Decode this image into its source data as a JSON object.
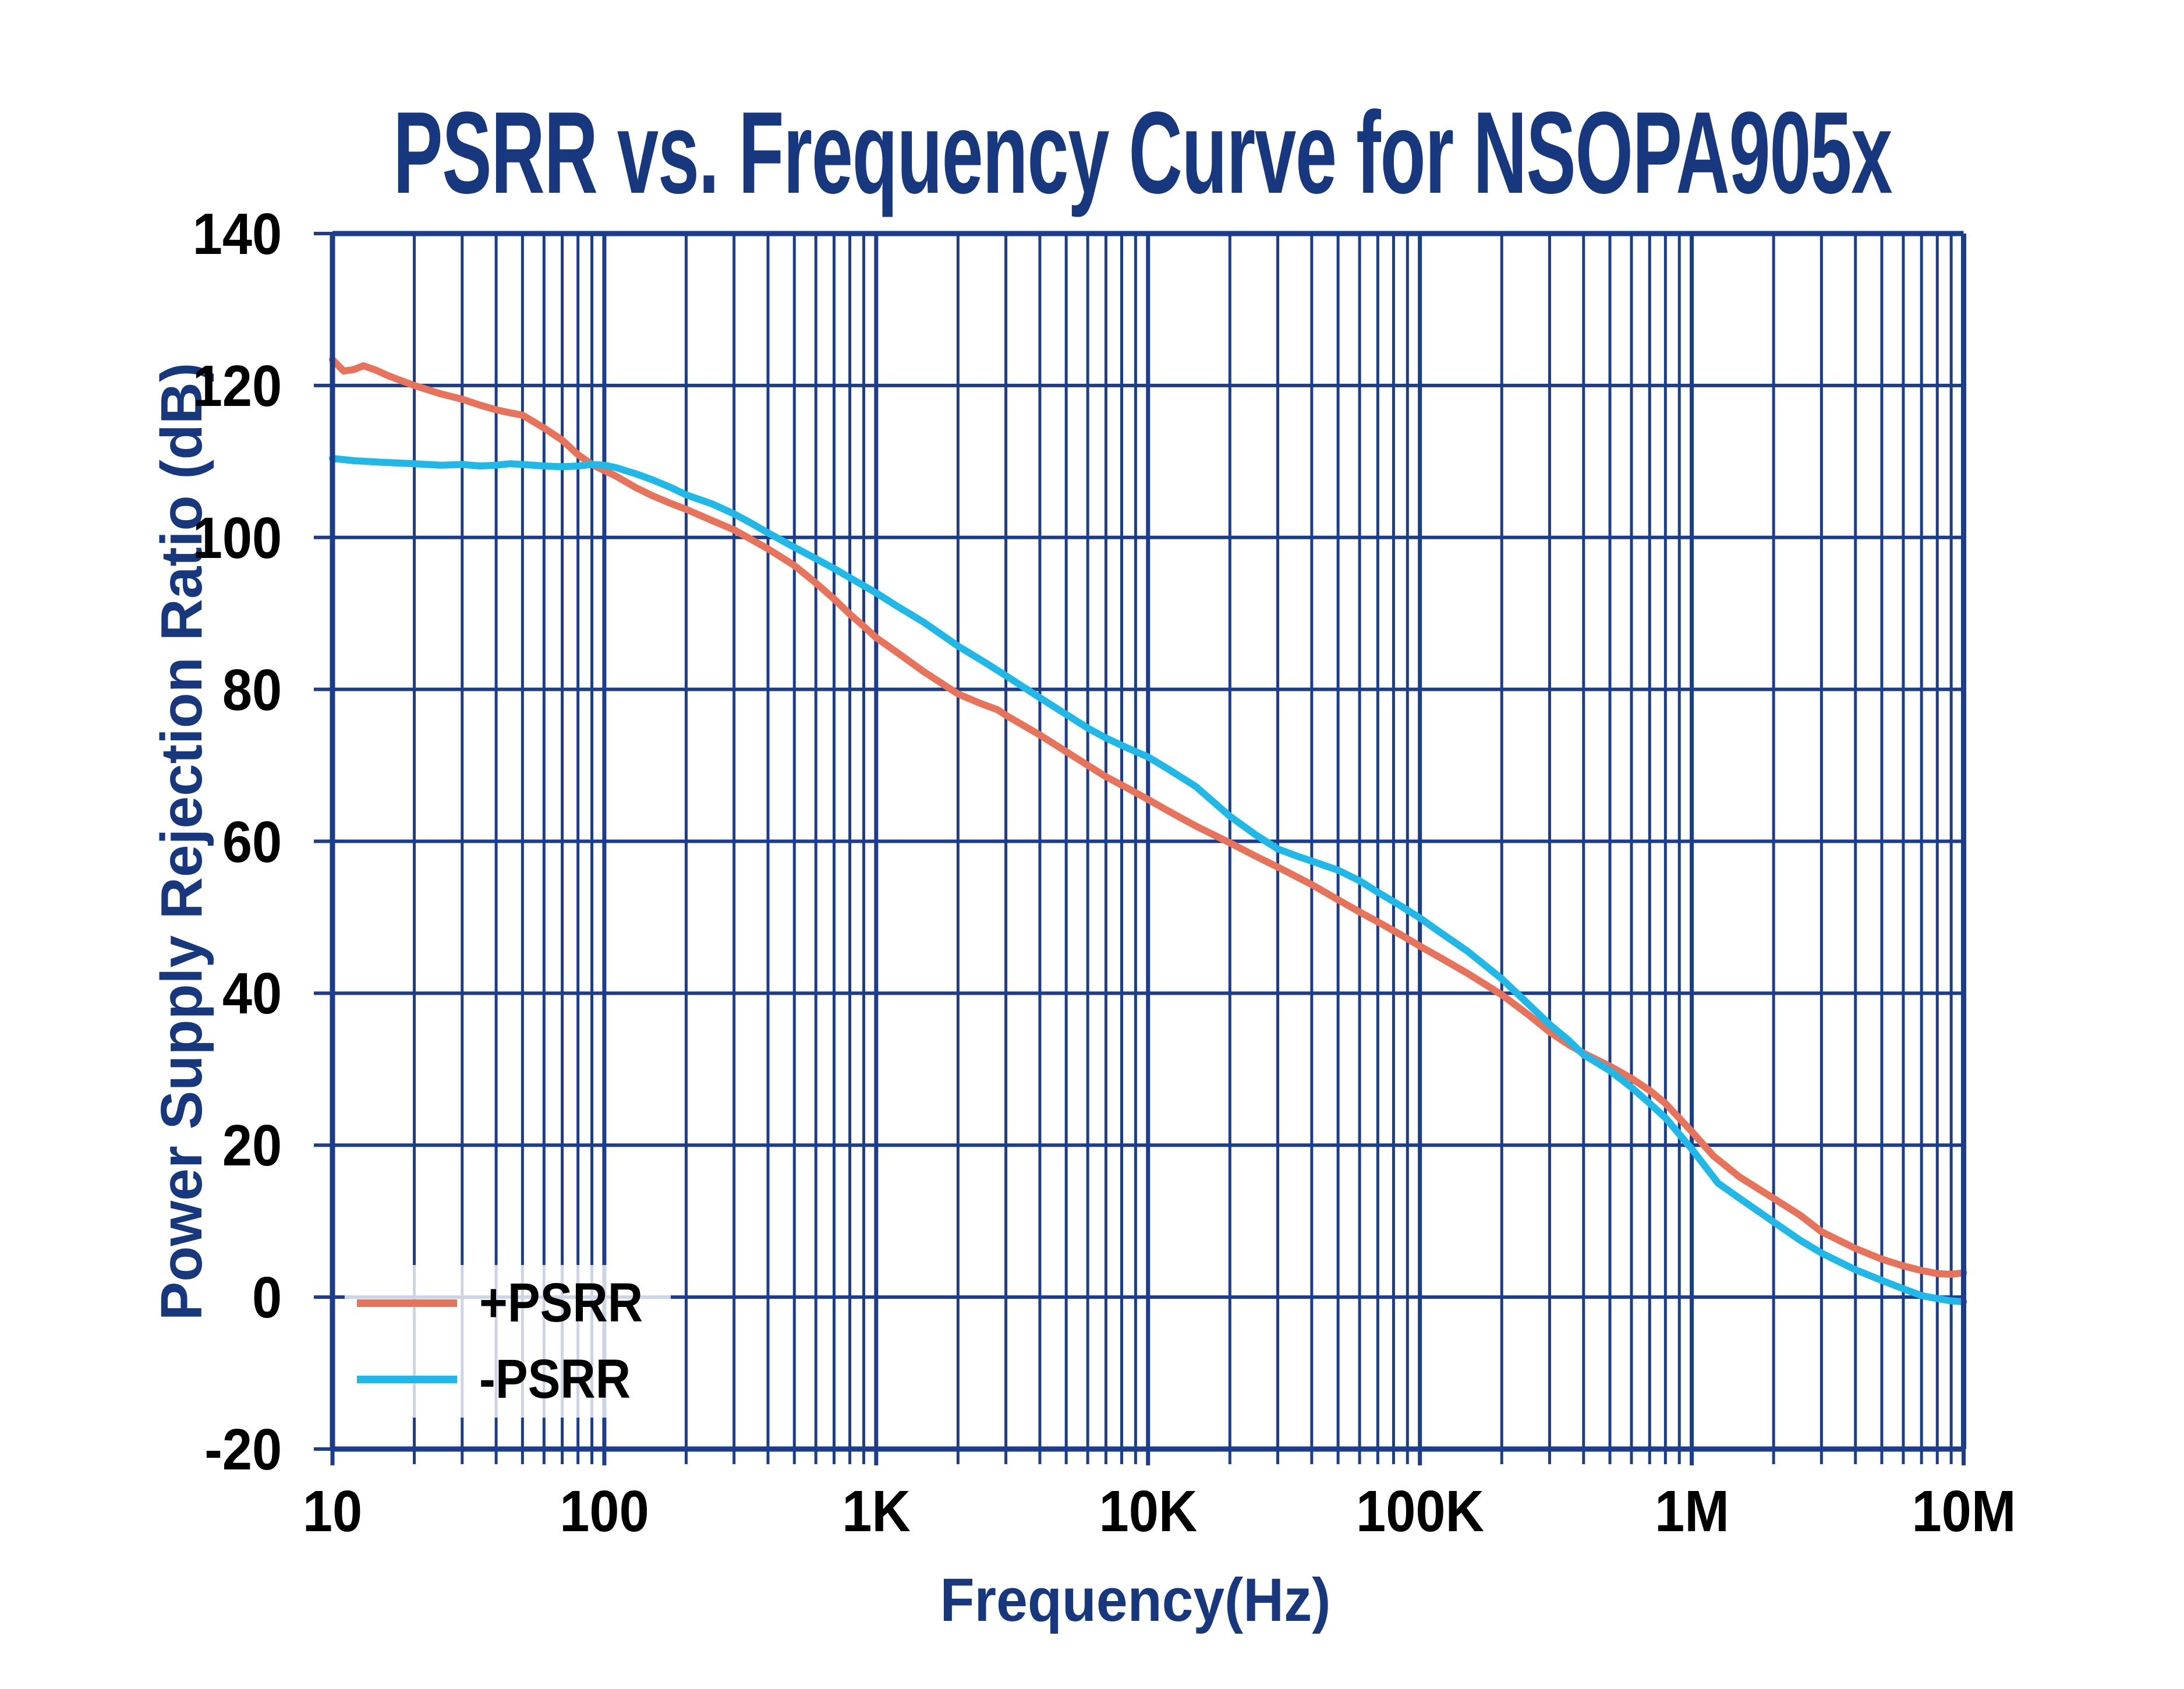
{
  "title": "PSRR vs. Frequency Curve for NSOPA905x",
  "colors": {
    "title_text": "#17377F",
    "axis_label_text": "#17377F",
    "tick_label_text": "#000000",
    "grid_line": "#1C3C8C",
    "plus_psrr": "#E8735A",
    "minus_psrr": "#1FB8E8",
    "legend_background": "rgba(255,255,255,0.78)"
  },
  "legend": {
    "entries": [
      {
        "label": "+PSRR",
        "series": "plus_psrr"
      },
      {
        "label": "-PSRR",
        "series": "minus_psrr"
      }
    ]
  },
  "chart_data": {
    "type": "line",
    "title": "PSRR vs. Frequency Curve for NSOPA905x",
    "xlabel": "Frequency(Hz)",
    "ylabel": "Power Supply Rejection Ratio (dB)",
    "x_scale": "log",
    "xlim": [
      10,
      10000000
    ],
    "ylim": [
      -20,
      140
    ],
    "grid": "both-major-and-minor",
    "legend_position": "lower-left",
    "x_tick_labels": [
      "10",
      "100",
      "1K",
      "10K",
      "100K",
      "1M",
      "10M"
    ],
    "x_tick_values": [
      10,
      100,
      1000,
      10000,
      100000,
      1000000,
      10000000
    ],
    "y_tick_labels": [
      "140",
      "120",
      "100",
      "80",
      "60",
      "40",
      "20",
      "0",
      "-20"
    ],
    "y_tick_values": [
      140,
      120,
      100,
      80,
      60,
      40,
      20,
      0,
      -20
    ],
    "series": [
      {
        "name": "+PSRR",
        "color": "#E8735A",
        "x": [
          10,
          11,
          12,
          13,
          14.5,
          16,
          18,
          20,
          25,
          30,
          35,
          40,
          45,
          50,
          60,
          70,
          80,
          90,
          100,
          110,
          130,
          150,
          175,
          200,
          250,
          300,
          400,
          500,
          600,
          700,
          800,
          900,
          1000,
          1200,
          1500,
          2000,
          2400,
          2800,
          3000,
          4000,
          5000,
          6000,
          7000,
          8500,
          10000,
          12000,
          15000,
          20000,
          25000,
          30000,
          40000,
          50000,
          60000,
          70000,
          85000,
          100000,
          120000,
          150000,
          200000,
          250000,
          300000,
          350000,
          400000,
          500000,
          600000,
          700000,
          800000,
          1000000,
          1200000,
          1500000,
          2000000,
          2500000,
          3000000,
          4000000,
          5000000,
          6000000,
          7000000,
          8000000,
          9000000,
          10000000
        ],
        "y": [
          123.4,
          121.9,
          122.1,
          122.6,
          122.0,
          121.3,
          120.6,
          120.0,
          118.9,
          118.2,
          117.4,
          116.8,
          116.4,
          116.1,
          114.4,
          112.8,
          110.9,
          109.6,
          108.8,
          108.1,
          106.6,
          105.5,
          104.5,
          103.7,
          102.2,
          101.0,
          98.5,
          96.3,
          94.0,
          91.9,
          89.9,
          88.3,
          86.8,
          84.8,
          82.3,
          79.4,
          78.2,
          77.3,
          76.6,
          74.0,
          71.8,
          70.0,
          68.5,
          66.9,
          65.5,
          63.9,
          62.0,
          59.8,
          58.0,
          56.6,
          54.3,
          52.3,
          50.7,
          49.4,
          47.7,
          46.2,
          44.6,
          42.6,
          39.8,
          37.2,
          34.9,
          33.3,
          32.1,
          30.4,
          28.8,
          27.2,
          25.5,
          21.8,
          18.6,
          15.8,
          13.0,
          10.8,
          8.6,
          6.4,
          5.0,
          4.1,
          3.5,
          3.1,
          3.0,
          3.2
        ]
      },
      {
        "name": "-PSRR",
        "color": "#1FB8E8",
        "x": [
          10,
          12,
          15,
          20,
          25,
          30,
          35,
          40,
          45,
          50,
          60,
          70,
          80,
          90,
          100,
          110,
          130,
          150,
          175,
          200,
          250,
          300,
          350,
          400,
          500,
          600,
          700,
          800,
          1000,
          1200,
          1500,
          2000,
          2500,
          3000,
          4000,
          5000,
          6000,
          7000,
          8500,
          10000,
          12000,
          15000,
          20000,
          25000,
          30000,
          35000,
          40000,
          50000,
          60000,
          70000,
          85000,
          100000,
          120000,
          150000,
          200000,
          250000,
          300000,
          350000,
          400000,
          500000,
          600000,
          700000,
          800000,
          1000000,
          1250000,
          1500000,
          2000000,
          2500000,
          3000000,
          4000000,
          5000000,
          6000000,
          7000000,
          8000000,
          9000000,
          10000000
        ],
        "y": [
          110.4,
          110.1,
          109.9,
          109.7,
          109.5,
          109.6,
          109.4,
          109.5,
          109.7,
          109.6,
          109.4,
          109.3,
          109.4,
          109.6,
          109.5,
          109.2,
          108.4,
          107.6,
          106.6,
          105.6,
          104.4,
          103.1,
          101.8,
          100.6,
          98.7,
          97.2,
          95.9,
          94.7,
          92.7,
          90.9,
          88.8,
          85.7,
          83.6,
          81.8,
          78.9,
          76.7,
          74.9,
          73.6,
          72.2,
          71.1,
          69.4,
          67.2,
          63.3,
          60.8,
          59.0,
          58.1,
          57.4,
          56.2,
          54.8,
          53.3,
          51.5,
          49.9,
          47.9,
          45.5,
          41.9,
          38.6,
          35.9,
          33.9,
          31.9,
          29.8,
          27.6,
          25.5,
          23.6,
          19.5,
          15.0,
          13.0,
          9.9,
          7.5,
          5.8,
          3.6,
          2.2,
          1.1,
          0.2,
          -0.2,
          -0.5,
          -0.6
        ]
      }
    ]
  }
}
